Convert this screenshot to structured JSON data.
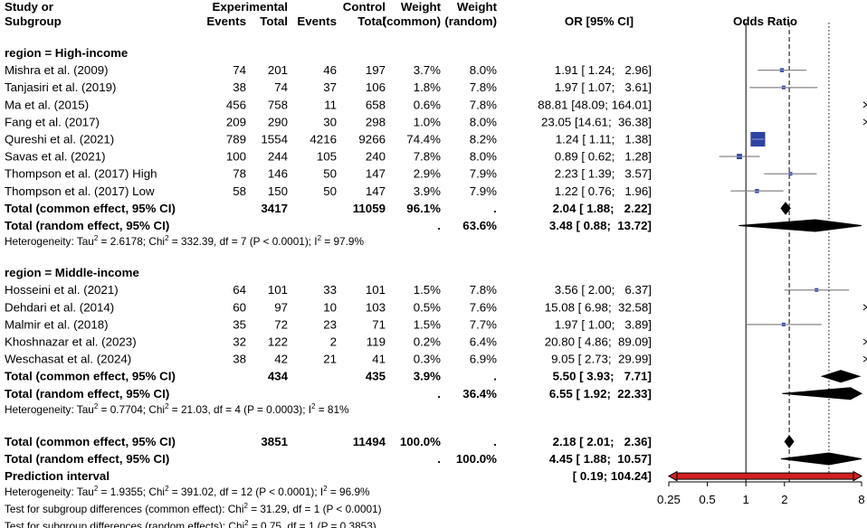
{
  "header": {
    "col_study_1": "Study or",
    "col_study_2": "Subgroup",
    "col_experimental": "Experimental",
    "col_control": "Control",
    "col_events": "Events",
    "col_total": "Total",
    "col_weight": "Weight",
    "col_common": "(common)",
    "col_random": "(random)",
    "col_or": "OR [95% CI]",
    "col_plot": "Odds Ratio"
  },
  "colors": {
    "square": "#2f43a0",
    "prediction_interval": "#d02020",
    "text": "#000000"
  },
  "chart_data": {
    "type": "forest",
    "measure": "Odds Ratio",
    "x_scale": "log",
    "x_ticks": [
      0.25,
      0.5,
      1,
      2,
      8
    ],
    "x_tick_labels": [
      "0.25",
      "0.5",
      "1",
      "2",
      "8"
    ],
    "xlim": [
      0.25,
      8
    ],
    "null_line": 1,
    "common_effect_line": 2.18,
    "random_effect_line": 4.45,
    "subgroups": [
      {
        "label": "region = High-income",
        "studies": [
          {
            "study": "Mishra et al. (2009)",
            "exp_events": "74",
            "exp_total": "201",
            "ctrl_events": "46",
            "ctrl_total": "197",
            "w_common": "3.7%",
            "w_random": "8.0%",
            "or_text": "1.91 [ 1.24;   2.96]",
            "or": 1.91,
            "lo": 1.24,
            "hi": 2.96
          },
          {
            "study": "Tanjasiri et al. (2019)",
            "exp_events": "38",
            "exp_total": "74",
            "ctrl_events": "37",
            "ctrl_total": "106",
            "w_common": "1.8%",
            "w_random": "7.8%",
            "or_text": "1.97 [ 1.07;   3.61]",
            "or": 1.97,
            "lo": 1.07,
            "hi": 3.61
          },
          {
            "study": "Ma et al. (2015)",
            "exp_events": "456",
            "exp_total": "758",
            "ctrl_events": "11",
            "ctrl_total": "658",
            "w_common": "0.6%",
            "w_random": "7.8%",
            "or_text": "88.81 [48.09; 164.01]",
            "or": 88.81,
            "lo": 48.09,
            "hi": 164.01
          },
          {
            "study": "Fang et al. (2017)",
            "exp_events": "209",
            "exp_total": "290",
            "ctrl_events": "30",
            "ctrl_total": "298",
            "w_common": "1.0%",
            "w_random": "8.0%",
            "or_text": "23.05 [14.61;  36.38]",
            "or": 23.05,
            "lo": 14.61,
            "hi": 36.38
          },
          {
            "study": "Qureshi et al. (2021)",
            "exp_events": "789",
            "exp_total": "1554",
            "ctrl_events": "4216",
            "ctrl_total": "9266",
            "w_common": "74.4%",
            "w_random": "8.2%",
            "or_text": "1.24 [ 1.11;   1.38]",
            "or": 1.24,
            "lo": 1.11,
            "hi": 1.38
          },
          {
            "study": "Savas et al. (2021)",
            "exp_events": "100",
            "exp_total": "244",
            "ctrl_events": "105",
            "ctrl_total": "240",
            "w_common": "7.8%",
            "w_random": "8.0%",
            "or_text": "0.89 [ 0.62;   1.28]",
            "or": 0.89,
            "lo": 0.62,
            "hi": 1.28
          },
          {
            "study": "Thompson et al. (2017) High",
            "exp_events": "78",
            "exp_total": "146",
            "ctrl_events": "50",
            "ctrl_total": "147",
            "w_common": "2.9%",
            "w_random": "7.9%",
            "or_text": "2.23 [ 1.39;   3.57]",
            "or": 2.23,
            "lo": 1.39,
            "hi": 3.57
          },
          {
            "study": "Thompson et al. (2017) Low",
            "exp_events": "58",
            "exp_total": "150",
            "ctrl_events": "50",
            "ctrl_total": "147",
            "w_common": "3.9%",
            "w_random": "7.9%",
            "or_text": "1.22 [ 0.76;   1.96]",
            "or": 1.22,
            "lo": 0.76,
            "hi": 1.96
          }
        ],
        "common": {
          "label": "Total (common effect, 95% CI)",
          "exp_total": "3417",
          "ctrl_total": "11059",
          "w_common": "96.1%",
          "w_random": ".",
          "or_text": "2.04 [ 1.88;   2.22]",
          "or": 2.04,
          "lo": 1.88,
          "hi": 2.22
        },
        "random": {
          "label": "Total (random effect, 95% CI)",
          "w_common": ".",
          "w_random": "63.6%",
          "or_text": "3.48 [ 0.88;  13.72]",
          "or": 3.48,
          "lo": 0.88,
          "hi": 13.72
        },
        "heterogeneity": {
          "tau2": "2.6178",
          "chi2": "332.39",
          "df": "7",
          "p": "P < 0.0001",
          "i2": "97.9%"
        }
      },
      {
        "label": "region = Middle-income",
        "studies": [
          {
            "study": "Hosseini et al. (2021)",
            "exp_events": "64",
            "exp_total": "101",
            "ctrl_events": "33",
            "ctrl_total": "101",
            "w_common": "1.5%",
            "w_random": "7.8%",
            "or_text": "3.56 [ 2.00;   6.37]",
            "or": 3.56,
            "lo": 2.0,
            "hi": 6.37
          },
          {
            "study": "Dehdari et al. (2014)",
            "exp_events": "60",
            "exp_total": "97",
            "ctrl_events": "10",
            "ctrl_total": "103",
            "w_common": "0.5%",
            "w_random": "7.6%",
            "or_text": "15.08 [ 6.98;  32.58]",
            "or": 15.08,
            "lo": 6.98,
            "hi": 32.58
          },
          {
            "study": "Malmir et al. (2018)",
            "exp_events": "35",
            "exp_total": "72",
            "ctrl_events": "23",
            "ctrl_total": "71",
            "w_common": "1.5%",
            "w_random": "7.7%",
            "or_text": "1.97 [ 1.00;   3.89]",
            "or": 1.97,
            "lo": 1.0,
            "hi": 3.89
          },
          {
            "study": "Khoshnazar et al. (2023)",
            "exp_events": "32",
            "exp_total": "122",
            "ctrl_events": "2",
            "ctrl_total": "119",
            "w_common": "0.2%",
            "w_random": "6.4%",
            "or_text": "20.80 [ 4.86;  89.09]",
            "or": 20.8,
            "lo": 4.86,
            "hi": 89.09
          },
          {
            "study": "Weschasat et al. (2024)",
            "exp_events": "38",
            "exp_total": "42",
            "ctrl_events": "21",
            "ctrl_total": "41",
            "w_common": "0.3%",
            "w_random": "6.9%",
            "or_text": "9.05 [ 2.73;  29.99]",
            "or": 9.05,
            "lo": 2.73,
            "hi": 29.99
          }
        ],
        "common": {
          "label": "Total (common effect, 95% CI)",
          "exp_total": "434",
          "ctrl_total": "435",
          "w_common": "3.9%",
          "w_random": ".",
          "or_text": "5.50 [ 3.93;   7.71]",
          "or": 5.5,
          "lo": 3.93,
          "hi": 7.71
        },
        "random": {
          "label": "Total (random effect, 95% CI)",
          "w_common": ".",
          "w_random": "36.4%",
          "or_text": "6.55 [ 1.92;  22.33]",
          "or": 6.55,
          "lo": 1.92,
          "hi": 22.33
        },
        "heterogeneity": {
          "tau2": "0.7704",
          "chi2": "21.03",
          "df": "4",
          "p": "P = 0.0003",
          "i2": "81%"
        }
      }
    ],
    "overall": {
      "common": {
        "label": "Total (common effect, 95% CI)",
        "exp_total": "3851",
        "ctrl_total": "11494",
        "w_common": "100.0%",
        "w_random": ".",
        "or_text": "2.18 [ 2.01;   2.36]",
        "or": 2.18,
        "lo": 2.01,
        "hi": 2.36
      },
      "random": {
        "label": "Total (random effect, 95% CI)",
        "w_common": ".",
        "w_random": "100.0%",
        "or_text": "4.45 [ 1.88;  10.57]",
        "or": 4.45,
        "lo": 1.88,
        "hi": 10.57
      },
      "prediction": {
        "label": "Prediction interval",
        "or_text": "[ 0.19; 104.24]",
        "lo": 0.19,
        "hi": 104.24
      },
      "heterogeneity": {
        "tau2": "1.9355",
        "chi2": "391.02",
        "df": "12",
        "p": "P < 0.0001",
        "i2": "96.9%"
      },
      "test_common": {
        "prefix": "Test for subgroup differences (common effect): Chi",
        "suffix": " = 31.29, df = 1 (P < 0.0001)"
      },
      "test_random": {
        "prefix": "Test for subgroup differences (random effects): Chi",
        "suffix": " = 0.75, df = 1 (P = 0.3853)"
      }
    }
  }
}
